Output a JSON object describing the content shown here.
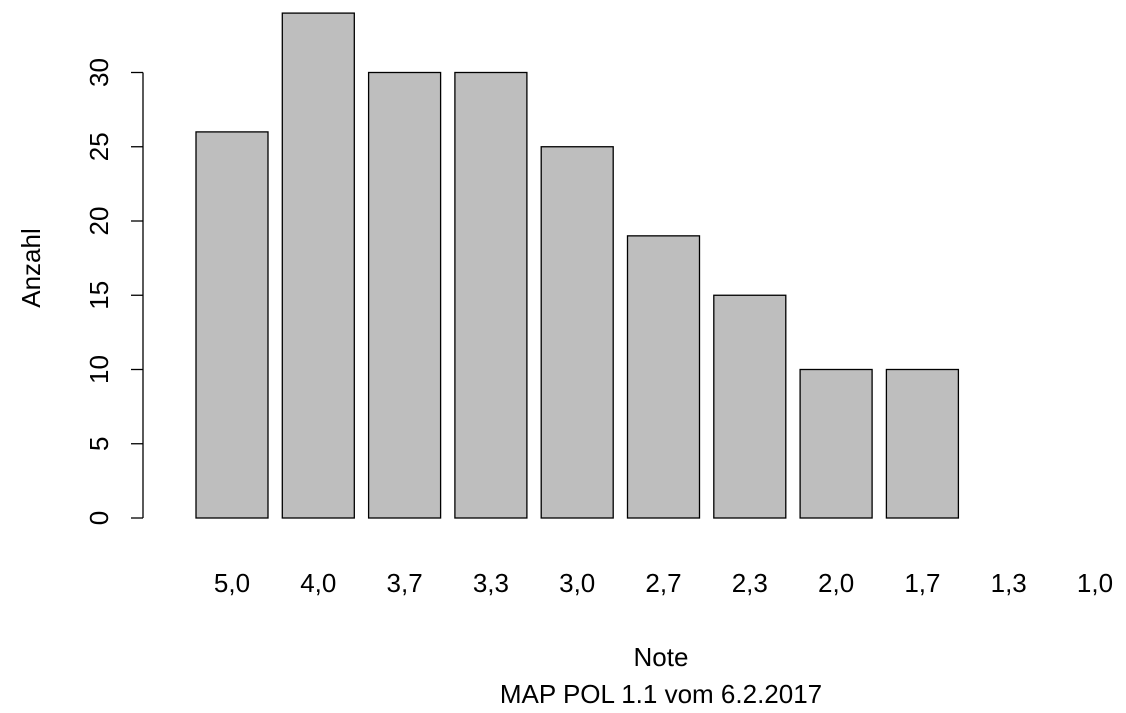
{
  "chart_data": {
    "type": "bar",
    "categories": [
      "5,0",
      "4,0",
      "3,7",
      "3,3",
      "3,0",
      "2,7",
      "2,3",
      "2,0",
      "1,7",
      "1,3",
      "1,0"
    ],
    "values": [
      26,
      34,
      30,
      30,
      25,
      19,
      15,
      10,
      10,
      0,
      0
    ],
    "xlabel": "Note",
    "subtitle": "MAP POL 1.1 vom 6.2.2017",
    "ylabel": "Anzahl",
    "ylim": [
      0,
      34
    ],
    "yticks": [
      "0",
      "5",
      "10",
      "15",
      "20",
      "25",
      "30"
    ],
    "bar_color": "#BEBEBE",
    "edge_color": "#000000",
    "grid": false,
    "legend": "none"
  }
}
